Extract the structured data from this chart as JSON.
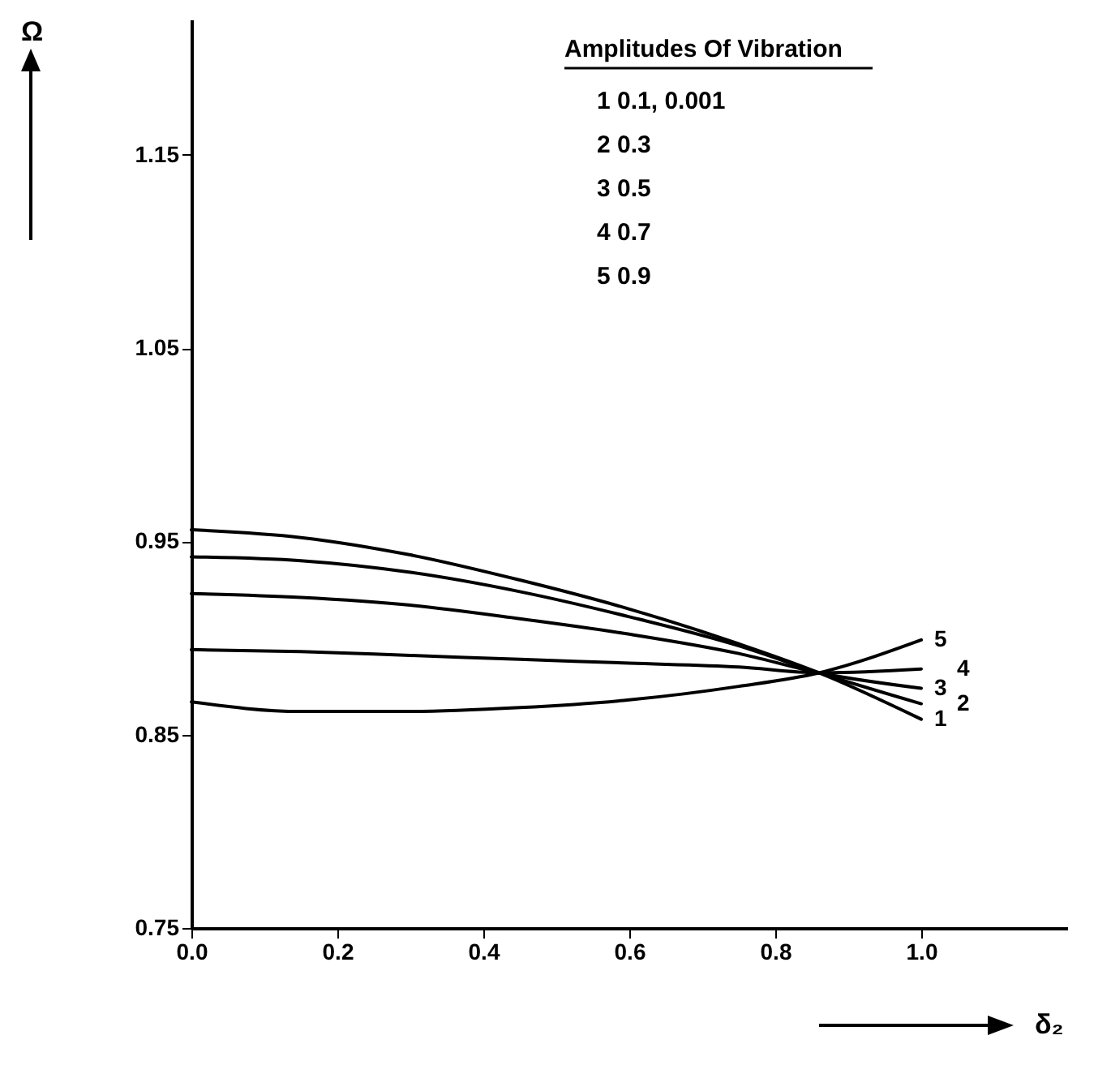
{
  "chart_data": {
    "type": "line",
    "xlabel": "δ₂",
    "ylabel": "Ω",
    "legend_title": "Amplitudes Of Vibration",
    "annotations": [
      "1  0.1, 0.001",
      "2  0.3",
      "3  0.5",
      "4  0.7",
      "5  0.9"
    ],
    "x": [
      0,
      0.15,
      0.3,
      0.45,
      0.6,
      0.75,
      0.86,
      1.0
    ],
    "series": [
      {
        "name": "1",
        "color": "#000000",
        "values": [
          0.956,
          0.952,
          0.943,
          0.93,
          0.915,
          0.897,
          0.882,
          0.858
        ]
      },
      {
        "name": "2",
        "color": "#000000",
        "values": [
          0.942,
          0.94,
          0.934,
          0.924,
          0.911,
          0.896,
          0.882,
          0.866
        ]
      },
      {
        "name": "3",
        "color": "#000000",
        "values": [
          0.923,
          0.921,
          0.917,
          0.91,
          0.902,
          0.892,
          0.882,
          0.874
        ]
      },
      {
        "name": "4",
        "color": "#000000",
        "values": [
          0.894,
          0.893,
          0.891,
          0.889,
          0.887,
          0.885,
          0.882,
          0.884
        ]
      },
      {
        "name": "5",
        "color": "#000000",
        "values": [
          0.867,
          0.862,
          0.862,
          0.864,
          0.868,
          0.875,
          0.882,
          0.899
        ]
      }
    ],
    "xlim": [
      0,
      1.2
    ],
    "ylim": [
      0.75,
      1.22
    ],
    "xticks": [
      {
        "value": 0,
        "label": "0.0"
      },
      0.2,
      0.4,
      0.6,
      0.8,
      {
        "value": 1,
        "label": "1.0"
      }
    ],
    "yticks": [
      0.75,
      0.85,
      0.95,
      1.05,
      1.15
    ],
    "grid": false,
    "legend": false,
    "marker": "none",
    "line_style": "solid"
  }
}
